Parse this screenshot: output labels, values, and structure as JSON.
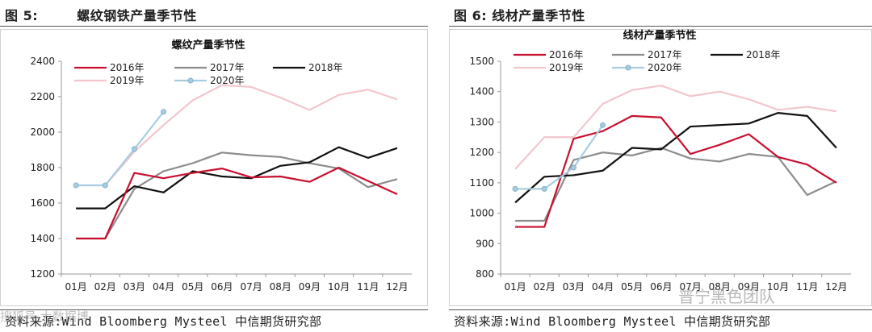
{
  "figures": [
    {
      "figure_label": "图 5:",
      "figure_title": "螺纹钢铁产量季节性",
      "source": "资料来源:Wind Bloomberg Mysteel 中信期货研究部",
      "chart_data": {
        "type": "line",
        "title": "螺纹产量季节性",
        "xlabel": "",
        "ylabel": "",
        "categories": [
          "01月",
          "02月",
          "03月",
          "04月",
          "05月",
          "06月",
          "07月",
          "08月",
          "09月",
          "10月",
          "11月",
          "12月"
        ],
        "ylim": [
          1200,
          2400
        ],
        "yticks": [
          1200,
          1400,
          1600,
          1800,
          2000,
          2200,
          2400
        ],
        "series": [
          {
            "name": "2016年",
            "color": "#c8102e",
            "marker": false,
            "values": [
              1400,
              1400,
              1770,
              1740,
              1770,
              1795,
              1745,
              1750,
              1720,
              1800,
              1725,
              1650
            ]
          },
          {
            "name": "2017年",
            "color": "#8c8c8c",
            "marker": false,
            "values": [
              1400,
              1400,
              1680,
              1780,
              1825,
              1885,
              1870,
              1860,
              1825,
              1795,
              1690,
              1735
            ]
          },
          {
            "name": "2018年",
            "color": "#111111",
            "marker": false,
            "values": [
              1570,
              1570,
              1695,
              1660,
              1780,
              1750,
              1740,
              1810,
              1830,
              1915,
              1855,
              1910
            ]
          },
          {
            "name": "2019年",
            "color": "#f2c6cc",
            "marker": false,
            "values": [
              1700,
              1700,
              1890,
              2040,
              2180,
              2265,
              2255,
              2195,
              2125,
              2210,
              2240,
              2185
            ]
          },
          {
            "name": "2020年",
            "color": "#a9cde0",
            "marker": true,
            "values": [
              1700,
              1700,
              1905,
              2115,
              null,
              null,
              null,
              null,
              null,
              null,
              null,
              null
            ]
          }
        ]
      }
    },
    {
      "figure_label": "图 6:",
      "figure_title": "线材产量季节性",
      "source": "资料来源:Wind Bloomberg Mysteel 中信期货研究部",
      "chart_data": {
        "type": "line",
        "title": "线材产量季节性",
        "xlabel": "",
        "ylabel": "",
        "categories": [
          "01月",
          "02月",
          "03月",
          "04月",
          "05月",
          "06月",
          "07月",
          "08月",
          "09月",
          "10月",
          "11月",
          "12月"
        ],
        "ylim": [
          800,
          1500
        ],
        "yticks": [
          800,
          900,
          1000,
          1100,
          1200,
          1300,
          1400,
          1500
        ],
        "series": [
          {
            "name": "2016年",
            "color": "#c8102e",
            "marker": false,
            "values": [
              955,
              955,
              1245,
              1270,
              1320,
              1315,
              1195,
              1225,
              1260,
              1185,
              1160,
              1100
            ]
          },
          {
            "name": "2017年",
            "color": "#8c8c8c",
            "marker": false,
            "values": [
              975,
              975,
              1175,
              1200,
              1190,
              1215,
              1180,
              1170,
              1195,
              1185,
              1060,
              1105
            ]
          },
          {
            "name": "2018年",
            "color": "#111111",
            "marker": false,
            "values": [
              1035,
              1120,
              1125,
              1140,
              1215,
              1210,
              1285,
              1290,
              1295,
              1330,
              1320,
              1215
            ]
          },
          {
            "name": "2019年",
            "color": "#f2c6cc",
            "marker": false,
            "values": [
              1145,
              1250,
              1250,
              1360,
              1405,
              1420,
              1385,
              1400,
              1375,
              1340,
              1350,
              1335
            ]
          },
          {
            "name": "2020年",
            "color": "#a9cde0",
            "marker": true,
            "values": [
              1080,
              1080,
              1150,
              1290,
              null,
              null,
              null,
              null,
              null,
              null,
              null,
              null
            ]
          }
        ]
      }
    }
  ],
  "watermarks": {
    "left": "搜狐号 大数据博",
    "right": "普宁黑色团队"
  }
}
